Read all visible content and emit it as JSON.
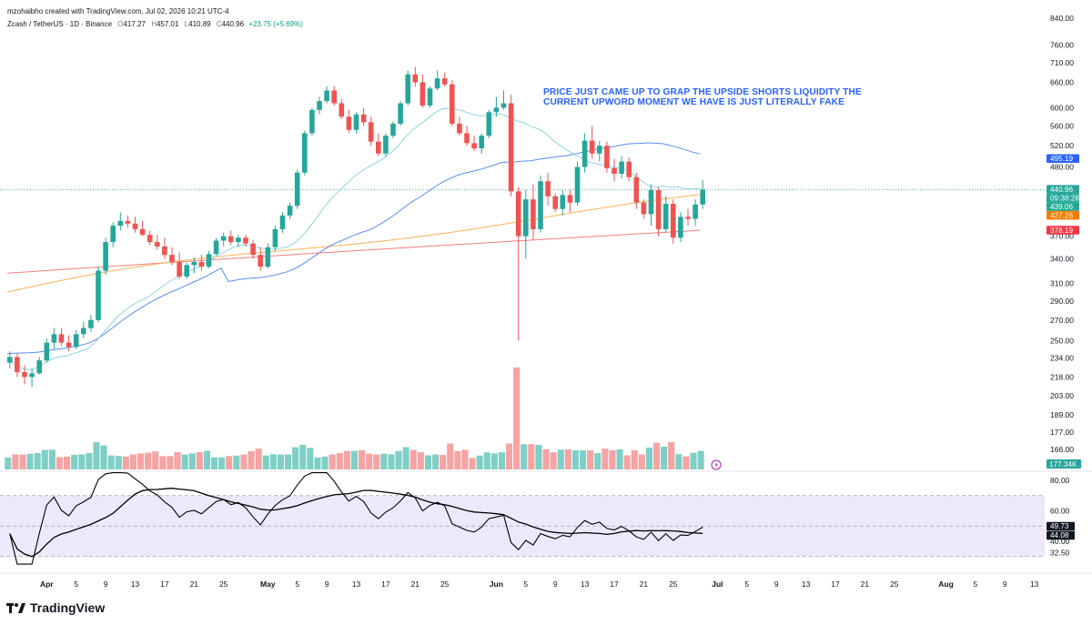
{
  "header": {
    "credit": "mzohaibho created with TradingView.com, Jul 02, 2026 10:21 UTC-4",
    "symbol": "Zcash / TetherUS · 1D · Binance",
    "ohlc": [
      {
        "label": "O",
        "value": "417.27"
      },
      {
        "label": "H",
        "value": "457.01"
      },
      {
        "label": "L",
        "value": "410.89"
      },
      {
        "label": "C",
        "value": "440.96"
      }
    ],
    "change": "+23.75 (+5.69%)"
  },
  "annotation": {
    "line1": "PRICE JUST CAME UP TO GRAP THE UPSIDE SHORTS LIQUIDITY THE",
    "line2": "CURRENT UPWORD MOMENT WE HAVE IS JUST LITERALLY FAKE"
  },
  "footer": {
    "brand": "TradingView"
  },
  "colors": {
    "up": "#26a69a",
    "down": "#ef5350",
    "vol_up": "#7fcfc6",
    "vol_down": "#f5a3a3",
    "ma_blue": "#5b8def",
    "ma_cyan": "#8fd3e0",
    "ma_orange": "#f4b55a",
    "ma_red": "#f08080",
    "rsi_fill": "#ede9fb",
    "rsi_line": "#000000"
  },
  "chart_data": [
    {
      "type": "candlestick",
      "scale": "log",
      "y_ticks": [
        "840.00",
        "760.00",
        "710.00",
        "660.00",
        "600.00",
        "560.00",
        "520.00",
        "480.00",
        "440.00",
        "400.00",
        "370.00",
        "340.00",
        "310.00",
        "290.00",
        "270.00",
        "250.00",
        "234.00",
        "218.00",
        "203.00",
        "189.00",
        "177.00",
        "166.00"
      ],
      "price_labels": [
        {
          "value": "495.19",
          "color": "#2962ff",
          "price": 495.19
        },
        {
          "value": "440.96",
          "color": "#26a69a",
          "price": 440.96
        },
        {
          "value": "09:38:28",
          "color": "#26a69a",
          "price": 440.96
        },
        {
          "value": "439.06",
          "color": "#22ab94",
          "price": 439.06
        },
        {
          "value": "427.26",
          "color": "#f57c00",
          "price": 427.26
        },
        {
          "value": "378.19",
          "color": "#f23645",
          "price": 378.19
        }
      ],
      "volume_label": "177.34K",
      "candles": [
        [
          230,
          240,
          225,
          235
        ],
        [
          235,
          238,
          218,
          222
        ],
        [
          222,
          228,
          212,
          218
        ],
        [
          218,
          225,
          210,
          221
        ],
        [
          221,
          235,
          220,
          232
        ],
        [
          232,
          252,
          230,
          248
        ],
        [
          248,
          262,
          242,
          256
        ],
        [
          256,
          262,
          245,
          248
        ],
        [
          248,
          255,
          240,
          244
        ],
        [
          244,
          260,
          242,
          256
        ],
        [
          256,
          268,
          252,
          262
        ],
        [
          262,
          275,
          258,
          270
        ],
        [
          270,
          330,
          268,
          325
        ],
        [
          325,
          368,
          320,
          362
        ],
        [
          362,
          390,
          355,
          385
        ],
        [
          385,
          405,
          378,
          392
        ],
        [
          392,
          400,
          382,
          388
        ],
        [
          388,
          398,
          375,
          380
        ],
        [
          380,
          392,
          370,
          372
        ],
        [
          372,
          378,
          358,
          362
        ],
        [
          362,
          372,
          352,
          356
        ],
        [
          356,
          368,
          340,
          345
        ],
        [
          345,
          355,
          332,
          336
        ],
        [
          336,
          348,
          315,
          318
        ],
        [
          318,
          335,
          315,
          332
        ],
        [
          332,
          342,
          322,
          336
        ],
        [
          336,
          345,
          325,
          330
        ],
        [
          330,
          350,
          328,
          346
        ],
        [
          346,
          368,
          344,
          364
        ],
        [
          364,
          375,
          356,
          370
        ],
        [
          370,
          378,
          358,
          362
        ],
        [
          362,
          372,
          355,
          368
        ],
        [
          368,
          372,
          356,
          360
        ],
        [
          360,
          365,
          340,
          345
        ],
        [
          345,
          355,
          325,
          330
        ],
        [
          330,
          360,
          328,
          355
        ],
        [
          355,
          385,
          350,
          380
        ],
        [
          380,
          405,
          375,
          400
        ],
        [
          400,
          420,
          395,
          415
        ],
        [
          415,
          475,
          410,
          470
        ],
        [
          470,
          550,
          465,
          545
        ],
        [
          545,
          600,
          540,
          595
        ],
        [
          595,
          625,
          585,
          615
        ],
        [
          615,
          650,
          610,
          640
        ],
        [
          640,
          650,
          605,
          610
        ],
        [
          610,
          620,
          575,
          580
        ],
        [
          580,
          595,
          545,
          552
        ],
        [
          552,
          590,
          545,
          585
        ],
        [
          585,
          600,
          560,
          568
        ],
        [
          568,
          580,
          520,
          528
        ],
        [
          528,
          545,
          500,
          505
        ],
        [
          505,
          545,
          500,
          540
        ],
        [
          540,
          570,
          535,
          565
        ],
        [
          565,
          615,
          560,
          610
        ],
        [
          610,
          690,
          605,
          680
        ],
        [
          680,
          700,
          650,
          660
        ],
        [
          660,
          680,
          600,
          605
        ],
        [
          605,
          650,
          600,
          645
        ],
        [
          645,
          690,
          640,
          670
        ],
        [
          670,
          685,
          650,
          655
        ],
        [
          655,
          665,
          560,
          565
        ],
        [
          565,
          580,
          540,
          545
        ],
        [
          545,
          560,
          520,
          525
        ],
        [
          525,
          540,
          510,
          515
        ],
        [
          515,
          545,
          505,
          540
        ],
        [
          540,
          595,
          535,
          590
        ],
        [
          590,
          625,
          580,
          600
        ],
        [
          600,
          640,
          595,
          610
        ],
        [
          610,
          630,
          430,
          438
        ],
        [
          438,
          445,
          250,
          370
        ],
        [
          370,
          440,
          340,
          425
        ],
        [
          425,
          450,
          365,
          380
        ],
        [
          380,
          465,
          375,
          455
        ],
        [
          455,
          470,
          415,
          430
        ],
        [
          430,
          435,
          405,
          410
        ],
        [
          410,
          440,
          400,
          432
        ],
        [
          432,
          440,
          405,
          420
        ],
        [
          420,
          490,
          415,
          480
        ],
        [
          480,
          545,
          470,
          530
        ],
        [
          530,
          560,
          495,
          505
        ],
        [
          505,
          530,
          490,
          520
        ],
        [
          520,
          528,
          470,
          478
        ],
        [
          478,
          495,
          455,
          468
        ],
        [
          468,
          500,
          460,
          490
        ],
        [
          490,
          498,
          455,
          462
        ],
        [
          462,
          470,
          410,
          420
        ],
        [
          420,
          425,
          395,
          402
        ],
        [
          402,
          450,
          385,
          440
        ],
        [
          440,
          445,
          370,
          380
        ],
        [
          380,
          430,
          375,
          418
        ],
        [
          418,
          425,
          360,
          368
        ],
        [
          368,
          405,
          362,
          398
        ],
        [
          398,
          410,
          385,
          395
        ],
        [
          395,
          425,
          385,
          417
        ],
        [
          417,
          457,
          410,
          441
        ]
      ]
    },
    {
      "type": "line",
      "name": "RSI",
      "y_ticks": [
        "80.00",
        "60.00",
        "40.00",
        "32.50"
      ],
      "bands": [
        70,
        50,
        30
      ],
      "labels": [
        {
          "value": "49.73",
          "bg": "#131722",
          "at": 49.73
        },
        {
          "value": "44.08",
          "bg": "#131722",
          "at": 44.08
        }
      ]
    },
    {
      "type": "time_axis",
      "ticks": [
        {
          "label": "Apr",
          "bold": true
        },
        {
          "label": "5"
        },
        {
          "label": "9"
        },
        {
          "label": "13"
        },
        {
          "label": "17"
        },
        {
          "label": "21"
        },
        {
          "label": "25"
        },
        {
          "label": "May",
          "bold": true
        },
        {
          "label": "5"
        },
        {
          "label": "9"
        },
        {
          "label": "13"
        },
        {
          "label": "17"
        },
        {
          "label": "21"
        },
        {
          "label": "25"
        },
        {
          "label": "Jun",
          "bold": true
        },
        {
          "label": "5"
        },
        {
          "label": "9"
        },
        {
          "label": "13"
        },
        {
          "label": "17"
        },
        {
          "label": "21"
        },
        {
          "label": "25"
        },
        {
          "label": "Jul",
          "bold": true
        },
        {
          "label": "5"
        },
        {
          "label": "9"
        },
        {
          "label": "13"
        },
        {
          "label": "17"
        },
        {
          "label": "21"
        },
        {
          "label": "25"
        },
        {
          "label": "Aug",
          "bold": true
        },
        {
          "label": "5"
        },
        {
          "label": "9"
        },
        {
          "label": "13"
        }
      ]
    }
  ]
}
